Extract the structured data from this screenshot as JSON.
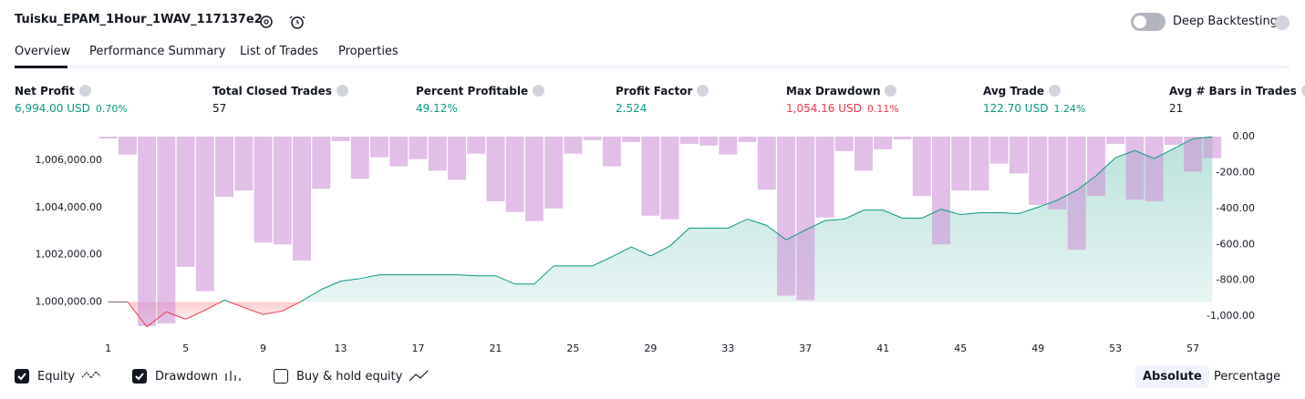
{
  "header": {
    "title": "Tuisku_EPAM_1Hour_1WAV_117137e2",
    "deep_backtesting": {
      "label": "Deep Backtesting",
      "enabled": false
    }
  },
  "tabs": {
    "items": [
      "Overview",
      "Performance Summary",
      "List of Trades",
      "Properties"
    ],
    "active": 0
  },
  "metrics": [
    {
      "label": "Net Profit",
      "value": "6,994.00 USD",
      "percent": "0.70%",
      "color": "#089981"
    },
    {
      "label": "Total Closed Trades",
      "value": "57",
      "color": "#131722"
    },
    {
      "label": "Percent Profitable",
      "value": "49.12%",
      "color": "#089981"
    },
    {
      "label": "Profit Factor",
      "value": "2.524",
      "color": "#089981"
    },
    {
      "label": "Max Drawdown",
      "value": "1,054.16 USD",
      "percent": "0.11%",
      "color": "#f23645"
    },
    {
      "label": "Avg Trade",
      "value": "122.70 USD",
      "percent": "1.24%",
      "color": "#089981"
    },
    {
      "label": "Avg # Bars in Trades",
      "value": "21",
      "color": "#131722"
    }
  ],
  "chart_data": {
    "type": "line",
    "x": [
      1,
      2,
      3,
      4,
      5,
      6,
      7,
      8,
      9,
      10,
      11,
      12,
      13,
      14,
      15,
      16,
      17,
      18,
      19,
      20,
      21,
      22,
      23,
      24,
      25,
      26,
      27,
      28,
      29,
      30,
      31,
      32,
      33,
      34,
      35,
      36,
      37,
      38,
      39,
      40,
      41,
      42,
      43,
      44,
      45,
      46,
      47,
      48,
      49,
      50,
      51,
      52,
      53,
      54,
      55,
      56,
      57,
      58
    ],
    "xlim": [
      0.5,
      58.5
    ],
    "xticks": [
      1,
      5,
      9,
      13,
      17,
      21,
      25,
      29,
      33,
      37,
      41,
      45,
      49,
      53,
      57
    ],
    "series": [
      {
        "name": "Equity",
        "visible": true,
        "color": "#089981",
        "below_color": "#f23645",
        "values": [
          1000000,
          1000000,
          998950,
          999580,
          999275,
          999650,
          1000080,
          999770,
          999470,
          999620,
          1000040,
          1000530,
          1000880,
          1000990,
          1001150,
          1001150,
          1001150,
          1001150,
          1001150,
          1001110,
          1001110,
          1000760,
          1000760,
          1001530,
          1001530,
          1001530,
          1001910,
          1002330,
          1001950,
          1002370,
          1003130,
          1003130,
          1003130,
          1003510,
          1003240,
          1002630,
          1003050,
          1003440,
          1003510,
          1003890,
          1003890,
          1003550,
          1003550,
          1003930,
          1003700,
          1003780,
          1003780,
          1003740,
          1004010,
          1004310,
          1004730,
          1005340,
          1006110,
          1006410,
          1006070,
          1006490,
          1006910,
          1006994
        ]
      },
      {
        "name": "Drawdown",
        "visible": true,
        "type": "bar",
        "axis": "y2",
        "color": "#ce93d8",
        "values": [
          -10,
          -100,
          -1054,
          -1040,
          -725,
          -860,
          -335,
          -300,
          -590,
          -600,
          -690,
          -290,
          -25,
          -235,
          -115,
          -165,
          -125,
          -190,
          -240,
          -95,
          -360,
          -420,
          -470,
          -400,
          -95,
          -20,
          -165,
          -30,
          -440,
          -460,
          -40,
          -50,
          -100,
          -30,
          -295,
          -885,
          -910,
          -450,
          -80,
          -190,
          -70,
          -15,
          -330,
          -600,
          -300,
          -300,
          -150,
          -205,
          -380,
          -405,
          -630,
          -330,
          -40,
          -350,
          -360,
          -45,
          -195,
          -120
        ]
      }
    ],
    "buy_and_hold": {
      "name": "Buy & hold equity",
      "visible": false
    },
    "ylim": [
      998900,
      1007000
    ],
    "yticks": [
      {
        "value": 1000000,
        "label": "1,000,000.00"
      },
      {
        "value": 1002000,
        "label": "1,002,000.00"
      },
      {
        "value": 1004000,
        "label": "1,004,000.00"
      },
      {
        "value": 1006000,
        "label": "1,006,000.00"
      }
    ],
    "y2lim": [
      -1065,
      0
    ],
    "y2ticks": [
      {
        "value": 0,
        "label": "0.00"
      },
      {
        "value": -200,
        "label": "-200.00"
      },
      {
        "value": -400,
        "label": "-400.00"
      },
      {
        "value": -600,
        "label": "-600.00"
      },
      {
        "value": -800,
        "label": "-800.00"
      },
      {
        "value": -1000,
        "label": "-1,000.00"
      }
    ],
    "scale_modes": [
      "Absolute",
      "Percentage"
    ],
    "active_scale": 0
  }
}
